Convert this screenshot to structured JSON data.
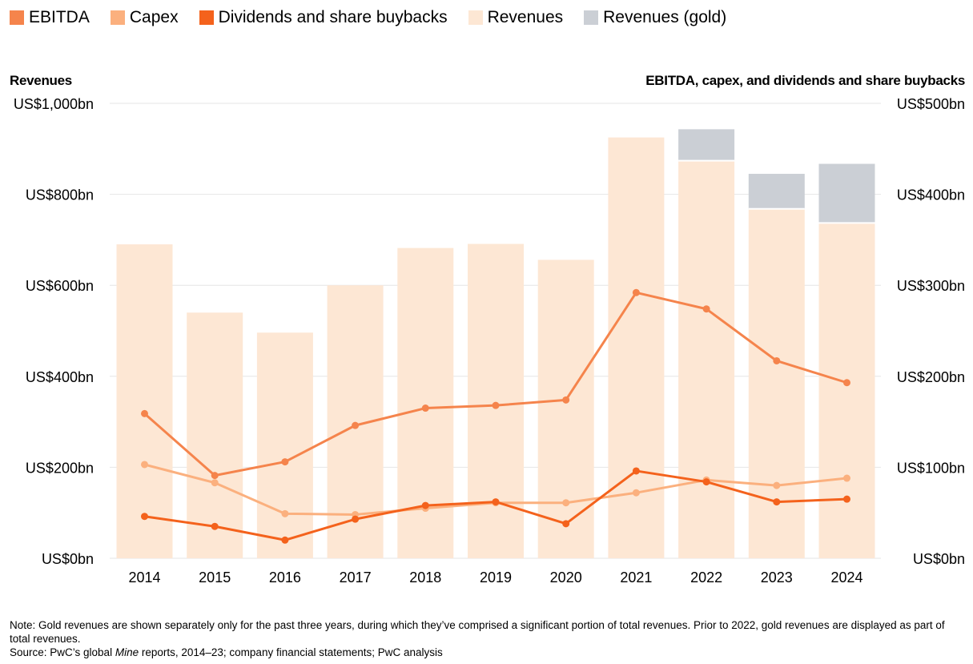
{
  "legend": [
    {
      "label": "EBITDA",
      "color": "#f5844c"
    },
    {
      "label": "Capex",
      "color": "#fbb07e"
    },
    {
      "label": "Dividends and share buybacks",
      "color": "#f4621c"
    },
    {
      "label": "Revenues",
      "color": "#fde7d4"
    },
    {
      "label": "Revenues (gold)",
      "color": "#cbcfd5"
    }
  ],
  "axis_titles": {
    "left": "Revenues",
    "right": "EBITDA, capex, and dividends and share buybacks"
  },
  "footer": {
    "note": "Note: Gold revenues are shown separately only for the past three years, during which they’ve comprised a significant portion of total revenues. Prior to 2022, gold revenues are displayed as part of total revenues.",
    "source_prefix": "Source: PwC’s global ",
    "source_italic": "Mine",
    "source_suffix": " reports, 2014–23; company financial statements; PwC analysis"
  },
  "chart_data": {
    "type": "bar",
    "categories": [
      "2014",
      "2015",
      "2016",
      "2017",
      "2018",
      "2019",
      "2020",
      "2021",
      "2022",
      "2023",
      "2024"
    ],
    "series": [
      {
        "name": "Revenues",
        "type": "bar",
        "axis": "left",
        "color": "#fde7d4",
        "values": [
          690,
          540,
          496,
          600,
          682,
          691,
          656,
          925,
          874,
          768,
          737
        ]
      },
      {
        "name": "Revenues (gold)",
        "type": "bar",
        "axis": "left",
        "stacked_on": "Revenues",
        "color": "#cbcfd5",
        "values": [
          0,
          0,
          0,
          0,
          0,
          0,
          0,
          0,
          69,
          77,
          130
        ]
      },
      {
        "name": "EBITDA",
        "type": "line",
        "axis": "right",
        "color": "#f5844c",
        "values": [
          159,
          91,
          106,
          146,
          165,
          168,
          174,
          292,
          274,
          217,
          193
        ]
      },
      {
        "name": "Capex",
        "type": "line",
        "axis": "right",
        "color": "#fbb07e",
        "values": [
          103,
          83,
          49,
          48,
          55,
          61,
          61,
          72,
          86,
          80,
          88
        ]
      },
      {
        "name": "Dividends and share buybacks",
        "type": "line",
        "axis": "right",
        "color": "#f4621c",
        "values": [
          46,
          35,
          20,
          43,
          58,
          62,
          38,
          96,
          84,
          62,
          65
        ]
      }
    ],
    "y_left": {
      "min": 0,
      "max": 1000,
      "ticks": [
        0,
        200,
        400,
        600,
        800,
        1000
      ],
      "tick_labels": [
        "US$0bn",
        "US$200bn",
        "US$400bn",
        "US$600bn",
        "US$800bn",
        "US$1,000bn"
      ]
    },
    "y_right": {
      "min": 0,
      "max": 500,
      "ticks": [
        0,
        100,
        200,
        300,
        400,
        500
      ],
      "tick_labels": [
        "US$0bn",
        "US$100bn",
        "US$200bn",
        "US$300bn",
        "US$400bn",
        "US$500bn"
      ]
    },
    "grid": true,
    "legend_position": "top-left"
  }
}
